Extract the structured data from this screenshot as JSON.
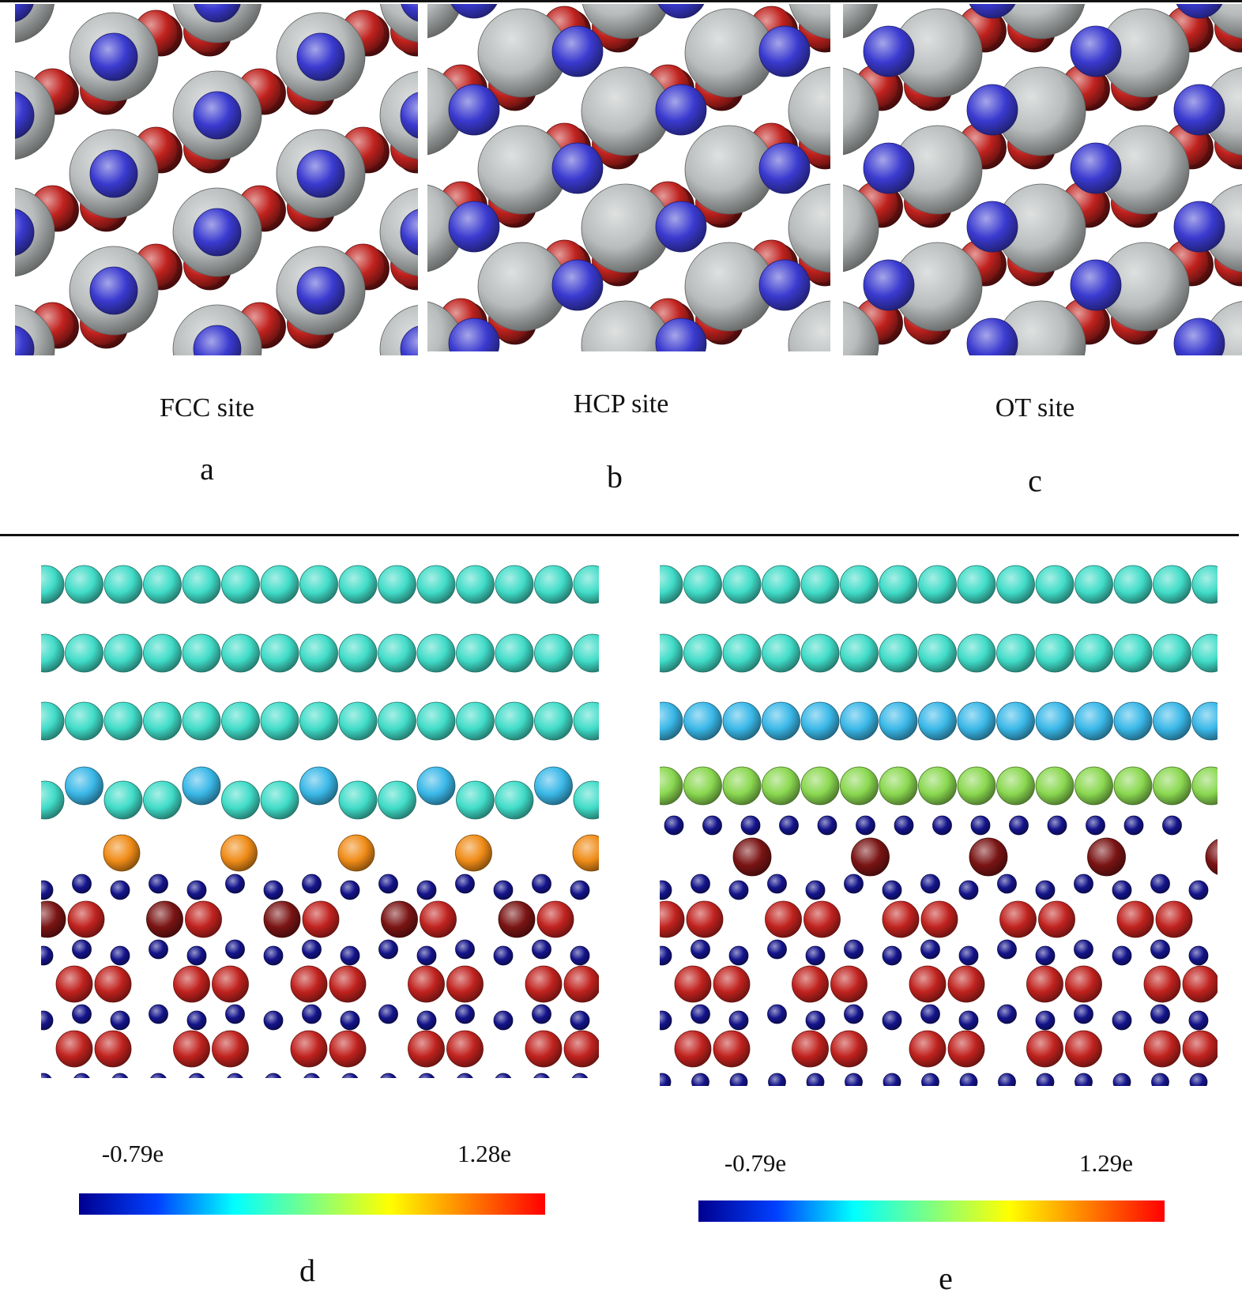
{
  "colors": {
    "oxygen_red": "#c0221e",
    "oxygen_dark_red": "#7a1414",
    "cation_blue_top": "#3a3ad0",
    "cation_blue_side": "#14148c",
    "metal_gray": "#b8bcbc",
    "cyan_atom": "#40dcc8",
    "light_blue_atom": "#3ab8e8",
    "green_atom": "#8ad850",
    "orange_atom": "#f08c18",
    "colormap": [
      "#000090",
      "#0040ff",
      "#00ffff",
      "#80ff80",
      "#ffff00",
      "#ff8000",
      "#ff0000"
    ]
  },
  "top_panels": [
    {
      "id": "a",
      "site_label": "FCC site",
      "letter": "a"
    },
    {
      "id": "b",
      "site_label": "HCP site",
      "letter": "b"
    },
    {
      "id": "c",
      "site_label": "OT site",
      "letter": "c"
    }
  ],
  "bottom_panels": [
    {
      "id": "d",
      "letter": "d",
      "cb_min": "-0.79e",
      "cb_max": "1.28e"
    },
    {
      "id": "e",
      "letter": "e",
      "cb_min": "-0.79e",
      "cb_max": "1.29e"
    }
  ]
}
